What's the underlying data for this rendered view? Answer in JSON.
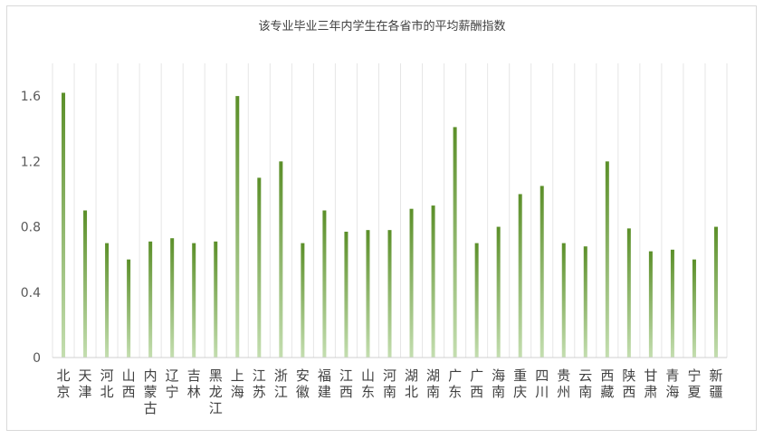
{
  "chart_data": {
    "type": "bar",
    "title": "该专业毕业三年内学生在各省市的平均薪酬指数",
    "xlabel": "",
    "ylabel": "",
    "ylim": [
      0,
      1.8
    ],
    "yticks": [
      "0",
      "0.4",
      "0.8",
      "1.2",
      "1.6"
    ],
    "yticks_values": [
      0,
      0.4,
      0.8,
      1.2,
      1.6
    ],
    "grid": "vertical-light",
    "legend": "none",
    "bar_color_top": "#5b8f29",
    "bar_color_bottom": "#c4deb0",
    "categories": [
      "北京",
      "天津",
      "河北",
      "山西",
      "内蒙古",
      "辽宁",
      "吉林",
      "黑龙江",
      "上海",
      "江苏",
      "浙江",
      "安徽",
      "福建",
      "江西",
      "山东",
      "河南",
      "湖北",
      "湖南",
      "广东",
      "广西",
      "海南",
      "重庆",
      "四川",
      "贵州",
      "云南",
      "西藏",
      "陕西",
      "甘肃",
      "青海",
      "宁夏",
      "新疆"
    ],
    "values": [
      1.62,
      0.9,
      0.7,
      0.6,
      0.71,
      0.73,
      0.7,
      0.71,
      1.6,
      1.1,
      1.2,
      0.7,
      0.9,
      0.77,
      0.78,
      0.78,
      0.91,
      0.93,
      1.41,
      0.7,
      0.8,
      1.0,
      1.05,
      0.7,
      0.68,
      1.2,
      0.79,
      0.65,
      0.66,
      0.6,
      0.8
    ]
  }
}
